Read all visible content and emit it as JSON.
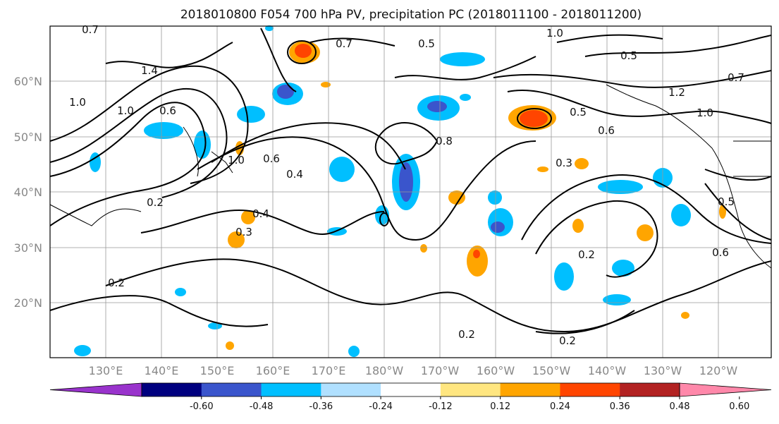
{
  "title": "2018010800 F054 700 hPa PV, precipitation PC (2018011100 - 2018011200)",
  "lat_labels": [
    "20°N",
    "30°N",
    "40°N",
    "50°N",
    "60°N"
  ],
  "lon_labels": [
    "130°E",
    "140°E",
    "150°E",
    "160°E",
    "170°E",
    "180°W",
    "170°W",
    "160°W",
    "150°W",
    "140°W",
    "130°W",
    "120°W"
  ],
  "colorbar": {
    "ticks": [
      "-0.60",
      "-0.48",
      "-0.36",
      "-0.24",
      "-0.12",
      "0.12",
      "0.24",
      "0.36",
      "0.48",
      "0.60"
    ],
    "colors": [
      "#9933cc",
      "#00007f",
      "#3a55cc",
      "#00bfff",
      "#b0e0ff",
      "#ffffff",
      "#ffe680",
      "#ffa500",
      "#ff4500",
      "#b22222",
      "#ff88aa"
    ]
  },
  "contour_labels": [
    "0.7",
    "1.0",
    "1.4",
    "0.6",
    "0.8",
    "0.5",
    "0.4",
    "0.3",
    "0.2",
    "1.2"
  ]
}
